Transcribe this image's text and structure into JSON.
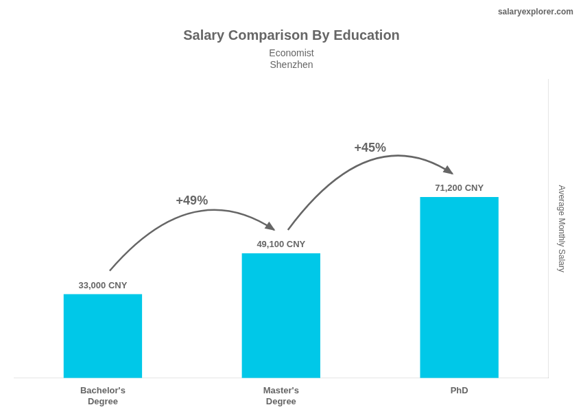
{
  "chart_data": {
    "type": "bar",
    "title": "Salary Comparison By Education",
    "subtitle": [
      "Economist",
      "Shenzhen"
    ],
    "source": [
      "salary",
      "explorer",
      ".com"
    ],
    "ylabel": "Average Monthly Salary",
    "categories": [
      "Bachelor's\nDegree",
      "Master's\nDegree",
      "PhD"
    ],
    "values": [
      33000,
      49100,
      71200
    ],
    "value_labels": [
      "33,000 CNY",
      "49,100 CNY",
      "71,200 CNY"
    ],
    "data_labels": true,
    "annotations": [
      "+49%",
      "+45%"
    ],
    "color": "#00c8e8",
    "ylim": [
      0,
      117480
    ],
    "tick_labels": "x",
    "grid": false
  }
}
